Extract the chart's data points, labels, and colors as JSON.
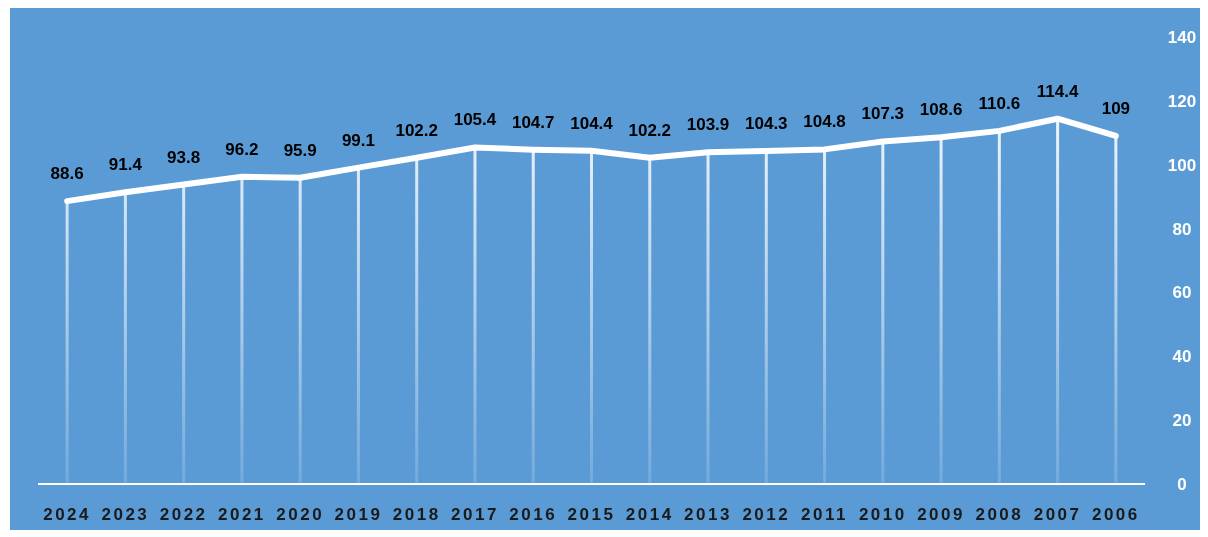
{
  "chart_data": {
    "type": "line",
    "categories": [
      "2024",
      "2023",
      "2022",
      "2021",
      "2020",
      "2019",
      "2018",
      "2017",
      "2016",
      "2015",
      "2014",
      "2013",
      "2012",
      "2011",
      "2010",
      "2009",
      "2008",
      "2007",
      "2006"
    ],
    "series": [
      {
        "color": "#ffffff",
        "values": [
          88.6,
          91.4,
          93.8,
          96.2,
          95.9,
          99.1,
          102.2,
          105.4,
          104.7,
          104.4,
          102.2,
          103.9,
          104.3,
          104.8,
          107.3,
          108.6,
          110.6,
          114.4,
          109
        ]
      }
    ],
    "ylim": [
      0,
      140
    ],
    "yticks": [
      0,
      20,
      40,
      60,
      80,
      100,
      120,
      140
    ],
    "data_labels": true,
    "grid": "x",
    "marker": "none",
    "line_style": "solid"
  }
}
